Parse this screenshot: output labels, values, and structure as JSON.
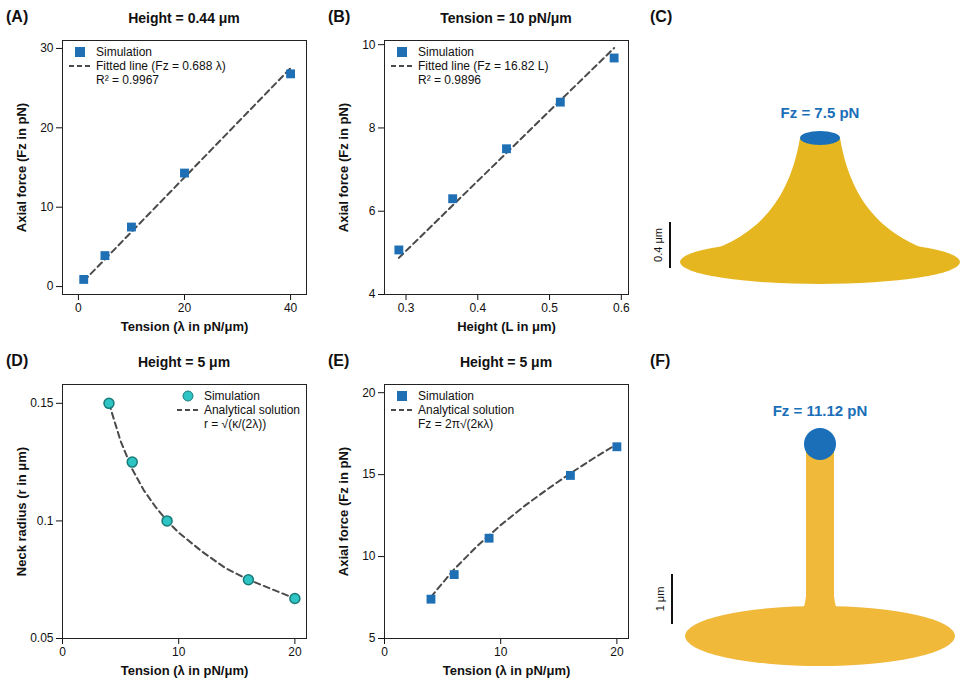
{
  "chart_data": [
    {
      "type": "scatter",
      "panel": "(A)",
      "title": "Height = 0.44 μm",
      "x_label": "Tension (λ in pN/μm)",
      "y_label": "Axial force (Fz in pN)",
      "xlim": [
        -3,
        43
      ],
      "xticks": [
        0,
        20,
        40
      ],
      "ylim": [
        -1,
        31
      ],
      "yticks": [
        0,
        10,
        20,
        30
      ],
      "legend": "upper left",
      "series": [
        {
          "name": "Simulation",
          "type": "scatter",
          "marker": "square",
          "color": "#1f6fb5",
          "x": [
            1,
            5,
            10,
            20,
            40
          ],
          "values": [
            0.9,
            3.9,
            7.5,
            14.3,
            26.8
          ]
        },
        {
          "name": "Fitted line (Fz = 0.688 λ)",
          "type": "line",
          "line_style": "dashed",
          "color": "#4a4a4a",
          "x": [
            1,
            40
          ],
          "values": [
            0.69,
            27.52
          ]
        }
      ],
      "annotations": [
        "R² = 0.9967"
      ]
    },
    {
      "type": "scatter",
      "panel": "(B)",
      "title": "Tension = 10 pN/μm",
      "x_label": "Height (L in μm)",
      "y_label": "Axial force (Fz in pN)",
      "xlim": [
        0.27,
        0.61
      ],
      "xticks": [
        0.3,
        0.4,
        0.5,
        0.6
      ],
      "ylim": [
        4,
        10.1
      ],
      "yticks": [
        4,
        6,
        8,
        10
      ],
      "legend": "upper left",
      "series": [
        {
          "name": "Simulation",
          "type": "scatter",
          "marker": "square",
          "color": "#1f6fb5",
          "x": [
            0.29,
            0.365,
            0.44,
            0.515,
            0.59
          ],
          "values": [
            5.07,
            6.3,
            7.5,
            8.62,
            9.68
          ]
        },
        {
          "name": "Fitted line (Fz = 16.82 L)",
          "type": "line",
          "line_style": "dashed",
          "color": "#4a4a4a",
          "x": [
            0.29,
            0.59
          ],
          "values": [
            4.88,
            9.92
          ]
        }
      ],
      "annotations": [
        "R² = 0.9896"
      ]
    },
    {
      "type": "diagram",
      "panel": "(C)",
      "annotation": "Fz = 7.5 pN",
      "scale_bar": "0.4 μm"
    },
    {
      "type": "scatter",
      "panel": "(D)",
      "title": "Height = 5 μm",
      "x_label": "Tension (λ in pN/μm)",
      "y_label": "Neck radius (r in μm)",
      "xlim": [
        0,
        21
      ],
      "xticks": [
        0,
        10,
        20
      ],
      "ylim": [
        0.05,
        0.158
      ],
      "yticks": [
        0.05,
        0.1,
        0.15
      ],
      "legend": "upper right",
      "series": [
        {
          "name": "Simulation",
          "type": "scatter",
          "marker": "circle",
          "color": "#2ec4c4",
          "x": [
            4,
            6,
            9,
            16,
            20
          ],
          "values": [
            0.15,
            0.125,
            0.1,
            0.075,
            0.067
          ]
        },
        {
          "name": "Analytical solution",
          "type": "line",
          "line_style": "dashed",
          "color": "#4a4a4a",
          "x": [
            4,
            5,
            6,
            7,
            8,
            9,
            10,
            12,
            14,
            16,
            18,
            20
          ],
          "values": [
            0.15,
            0.134,
            0.122,
            0.113,
            0.106,
            0.1,
            0.095,
            0.087,
            0.08,
            0.075,
            0.071,
            0.067
          ]
        }
      ],
      "annotations": [
        "r = √(κ/(2λ))"
      ]
    },
    {
      "type": "scatter",
      "panel": "(E)",
      "title": "Height = 5 μm",
      "x_label": "Tension (λ in pN/μm)",
      "y_label": "Axial force (Fz in pN)",
      "xlim": [
        0,
        21
      ],
      "xticks": [
        0,
        10,
        20
      ],
      "ylim": [
        5,
        20.5
      ],
      "yticks": [
        5,
        10,
        15,
        20
      ],
      "legend": "upper left",
      "series": [
        {
          "name": "Simulation",
          "type": "scatter",
          "marker": "square",
          "color": "#1f6fb5",
          "x": [
            4,
            6,
            9,
            16,
            20
          ],
          "values": [
            7.4,
            8.9,
            11.12,
            14.95,
            16.7
          ]
        },
        {
          "name": "Analytical solution",
          "type": "line",
          "line_style": "dashed",
          "color": "#4a4a4a",
          "x": [
            4,
            6,
            8,
            10,
            12,
            14,
            16,
            18,
            20
          ],
          "values": [
            7.54,
            9.23,
            10.66,
            11.92,
            13.06,
            14.1,
            15.08,
            16.0,
            16.86
          ]
        }
      ],
      "annotations": [
        "Fz = 2π√(2κλ)"
      ]
    },
    {
      "type": "diagram",
      "panel": "(F)",
      "annotation": "Fz = 11.12 pN",
      "scale_bar": "1 μm"
    }
  ]
}
